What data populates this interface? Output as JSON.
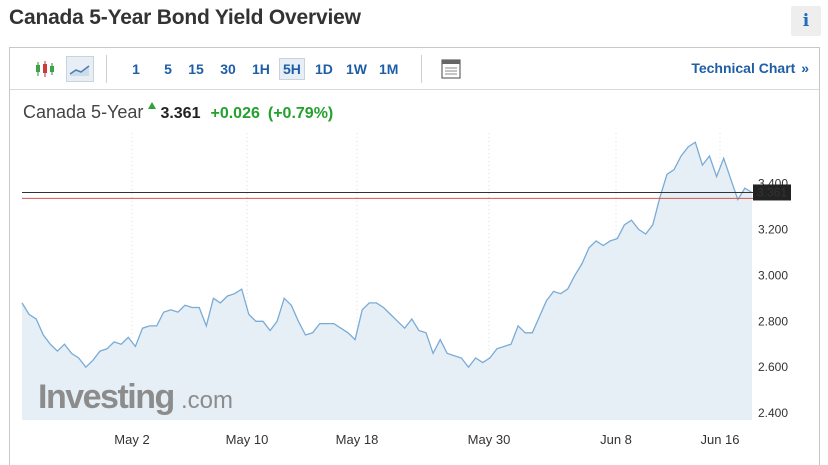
{
  "header": {
    "title": "Canada 5-Year Bond Yield Overview",
    "info_glyph": "i"
  },
  "toolbar": {
    "chart_type_icons": [
      "candlestick-icon",
      "area-chart-icon"
    ],
    "intervals": [
      "1",
      "5",
      "15",
      "30",
      "1H",
      "5H",
      "1D",
      "1W",
      "1M"
    ],
    "active_interval": "5H",
    "table_icon": "table-icon",
    "technical_link": "Technical Chart",
    "technical_arrow": "»"
  },
  "quote": {
    "name": "Canada 5-Year",
    "last": "3.361",
    "change": "+0.026",
    "change_pct": "(+0.79%)"
  },
  "watermark": {
    "brand": "Investing",
    "suffix": ".com"
  },
  "colors": {
    "line": "#7aabd6",
    "area": "#e6eff6",
    "last_line": "#333333",
    "prev_close": "#d9534f",
    "up": "#23a12d",
    "link": "#1e5ea7"
  },
  "chart_data": {
    "type": "area",
    "x_tick_labels": [
      "May 2",
      "May 10",
      "May 18",
      "May 30",
      "Jun 8",
      "Jun 16"
    ],
    "y_ticks": [
      "2.400",
      "2.600",
      "2.800",
      "3.000",
      "3.200",
      "3.400"
    ],
    "ylim": [
      2.37,
      3.62
    ],
    "y_axis_side": "right",
    "grid": "vertical dotted",
    "last_value": 3.361,
    "last_label": "3.361",
    "prev_close": 3.335,
    "values": [
      2.88,
      2.83,
      2.81,
      2.74,
      2.7,
      2.67,
      2.7,
      2.66,
      2.64,
      2.6,
      2.63,
      2.67,
      2.68,
      2.71,
      2.7,
      2.73,
      2.69,
      2.77,
      2.78,
      2.78,
      2.84,
      2.85,
      2.84,
      2.87,
      2.86,
      2.86,
      2.78,
      2.9,
      2.88,
      2.91,
      2.92,
      2.94,
      2.83,
      2.8,
      2.8,
      2.76,
      2.8,
      2.9,
      2.87,
      2.8,
      2.74,
      2.75,
      2.79,
      2.79,
      2.79,
      2.77,
      2.75,
      2.72,
      2.85,
      2.88,
      2.88,
      2.86,
      2.83,
      2.8,
      2.77,
      2.81,
      2.76,
      2.75,
      2.66,
      2.72,
      2.66,
      2.65,
      2.64,
      2.6,
      2.64,
      2.62,
      2.64,
      2.68,
      2.69,
      2.7,
      2.78,
      2.75,
      2.75,
      2.82,
      2.89,
      2.93,
      2.92,
      2.94,
      3.0,
      3.05,
      3.12,
      3.15,
      3.13,
      3.15,
      3.16,
      3.22,
      3.24,
      3.2,
      3.18,
      3.22,
      3.34,
      3.44,
      3.46,
      3.52,
      3.56,
      3.58,
      3.48,
      3.52,
      3.43,
      3.51,
      3.42,
      3.33,
      3.38,
      3.361
    ]
  }
}
